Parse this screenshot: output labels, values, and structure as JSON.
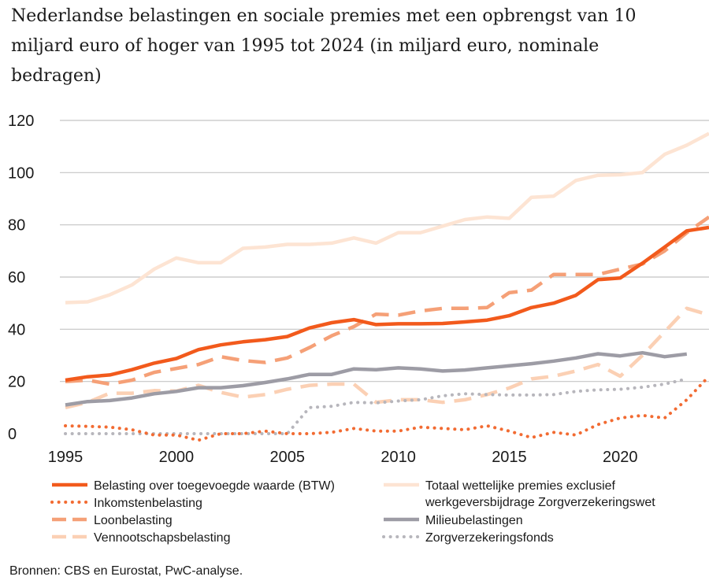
{
  "chart_data": {
    "type": "line",
    "title": "Nederlandse belastingen en sociale premies met een opbrengst van 10 miljard euro of hoger van 1995 tot 2024 (in miljard euro, nominale bedragen)",
    "xlabel": "",
    "ylabel": "",
    "xlim": [
      1995,
      2024
    ],
    "ylim": [
      0,
      120
    ],
    "yticks": [
      0,
      20,
      40,
      60,
      80,
      100,
      120
    ],
    "xticks": [
      1995,
      2000,
      2005,
      2010,
      2015,
      2020
    ],
    "grid": true,
    "x": [
      1995,
      1996,
      1997,
      1998,
      1999,
      2000,
      2001,
      2002,
      2003,
      2004,
      2005,
      2006,
      2007,
      2008,
      2009,
      2010,
      2011,
      2012,
      2013,
      2014,
      2015,
      2016,
      2017,
      2018,
      2019,
      2020,
      2021,
      2022,
      2023,
      2024
    ],
    "series": [
      {
        "name": "Belasting over toegevoegde waarde (BTW)",
        "color": "#f25a1c",
        "style": "solid",
        "width": 4.5,
        "values": [
          20.5,
          21.8,
          22.5,
          24.5,
          27,
          28.8,
          32.2,
          34,
          35.2,
          36,
          37.2,
          40.5,
          42.5,
          43.7,
          41.8,
          42.1,
          42.1,
          42.2,
          42.8,
          43.5,
          45.2,
          48.3,
          50,
          53,
          59,
          59.6,
          65.3,
          71.5,
          77.7,
          79
        ]
      },
      {
        "name": "Inkomstenbelasting",
        "color": "#f26b32",
        "style": "dotted",
        "width": 4,
        "values": [
          3,
          2.8,
          2.5,
          1.5,
          -0.5,
          -0.5,
          -2.5,
          0,
          0,
          1,
          0,
          0,
          0.5,
          2,
          1,
          1,
          2.5,
          2,
          1.5,
          3,
          1,
          -1.5,
          0.5,
          -0.5,
          3.5,
          6,
          7,
          6,
          13,
          22
        ]
      },
      {
        "name": "Loonbelasting",
        "color": "#f5a077",
        "style": "dashed",
        "width": 4.5,
        "values": [
          20,
          20.5,
          19,
          20.5,
          23.5,
          25,
          26.5,
          29.5,
          28,
          27.3,
          29,
          33,
          37.5,
          41,
          45.8,
          45.4,
          47,
          48,
          48,
          48.3,
          54,
          55,
          61,
          61,
          61,
          63,
          65,
          70,
          77,
          83
        ]
      },
      {
        "name": "Vennootschapsbelasting",
        "color": "#fbd0b4",
        "style": "dashed",
        "width": 4.5,
        "values": [
          10,
          12,
          15.5,
          15.5,
          16.5,
          16.3,
          18.5,
          15.8,
          14,
          15,
          17,
          18.5,
          19,
          19,
          12,
          13,
          13,
          12,
          13,
          15,
          17.5,
          21,
          22,
          24,
          26.5,
          22,
          30,
          39,
          48,
          45.5
        ]
      },
      {
        "name": "Totaal wettelijke premies exclusief werkgeversbijdrage Zorgverzekeringswet",
        "color": "#fde4d3",
        "style": "solid",
        "width": 4.5,
        "values": [
          50.2,
          50.5,
          53.2,
          57,
          63,
          67.3,
          65.5,
          65.5,
          71,
          71.5,
          72.5,
          72.5,
          73,
          75,
          73,
          77,
          77,
          79.5,
          82,
          83,
          82.5,
          90.5,
          91,
          97,
          99,
          99.2,
          100,
          107,
          110.5,
          115
        ]
      },
      {
        "name": "Milieubelastingen",
        "color": "#9d9ca5",
        "style": "solid",
        "width": 4.5,
        "values": [
          11,
          12.3,
          12.7,
          13.7,
          15.3,
          16.2,
          17.6,
          17.6,
          18.4,
          19.6,
          21,
          22.7,
          22.7,
          24.8,
          24.5,
          25.2,
          24.8,
          24,
          24.4,
          25.2,
          26,
          26.8,
          27.8,
          29,
          30.6,
          29.8,
          31,
          29.5,
          30.5,
          null
        ]
      },
      {
        "name": "Zorgverzekeringsfonds",
        "color": "#b7b6bc",
        "style": "dotted",
        "width": 4,
        "values": [
          0,
          0,
          0,
          0,
          0,
          0,
          0,
          0,
          0,
          0,
          0,
          10,
          10.5,
          12,
          11.8,
          12.5,
          13,
          14.5,
          15.3,
          15,
          14.8,
          14.8,
          15,
          16.2,
          16.8,
          17,
          17.8,
          19,
          21,
          null
        ]
      }
    ],
    "legend_position": "bottom",
    "legend_columns": [
      [
        "Belasting over toegevoegde waarde (BTW)",
        "Inkomstenbelasting",
        "Loonbelasting",
        "Vennootschapsbelasting"
      ],
      [
        "Totaal wettelijke premies exclusief werkgeversbijdrage Zorgverzekeringswet",
        "Milieubelastingen",
        "Zorgverzekeringsfonds"
      ]
    ],
    "legend_label_lines": {
      "Totaal wettelijke premies exclusief werkgeversbijdrage Zorgverzekeringswet": [
        "Totaal wettelijke premies exclusief",
        "werkgeversbijdrage Zorgverzekeringswet"
      ]
    }
  },
  "page": {
    "title": "Nederlandse belastingen en sociale premies met een opbrengst van 10 miljard euro of hoger van 1995 tot 2024 (in miljard euro, nominale bedragen)",
    "source": "Bronnen: CBS en Eurostat, PwC-analyse."
  }
}
